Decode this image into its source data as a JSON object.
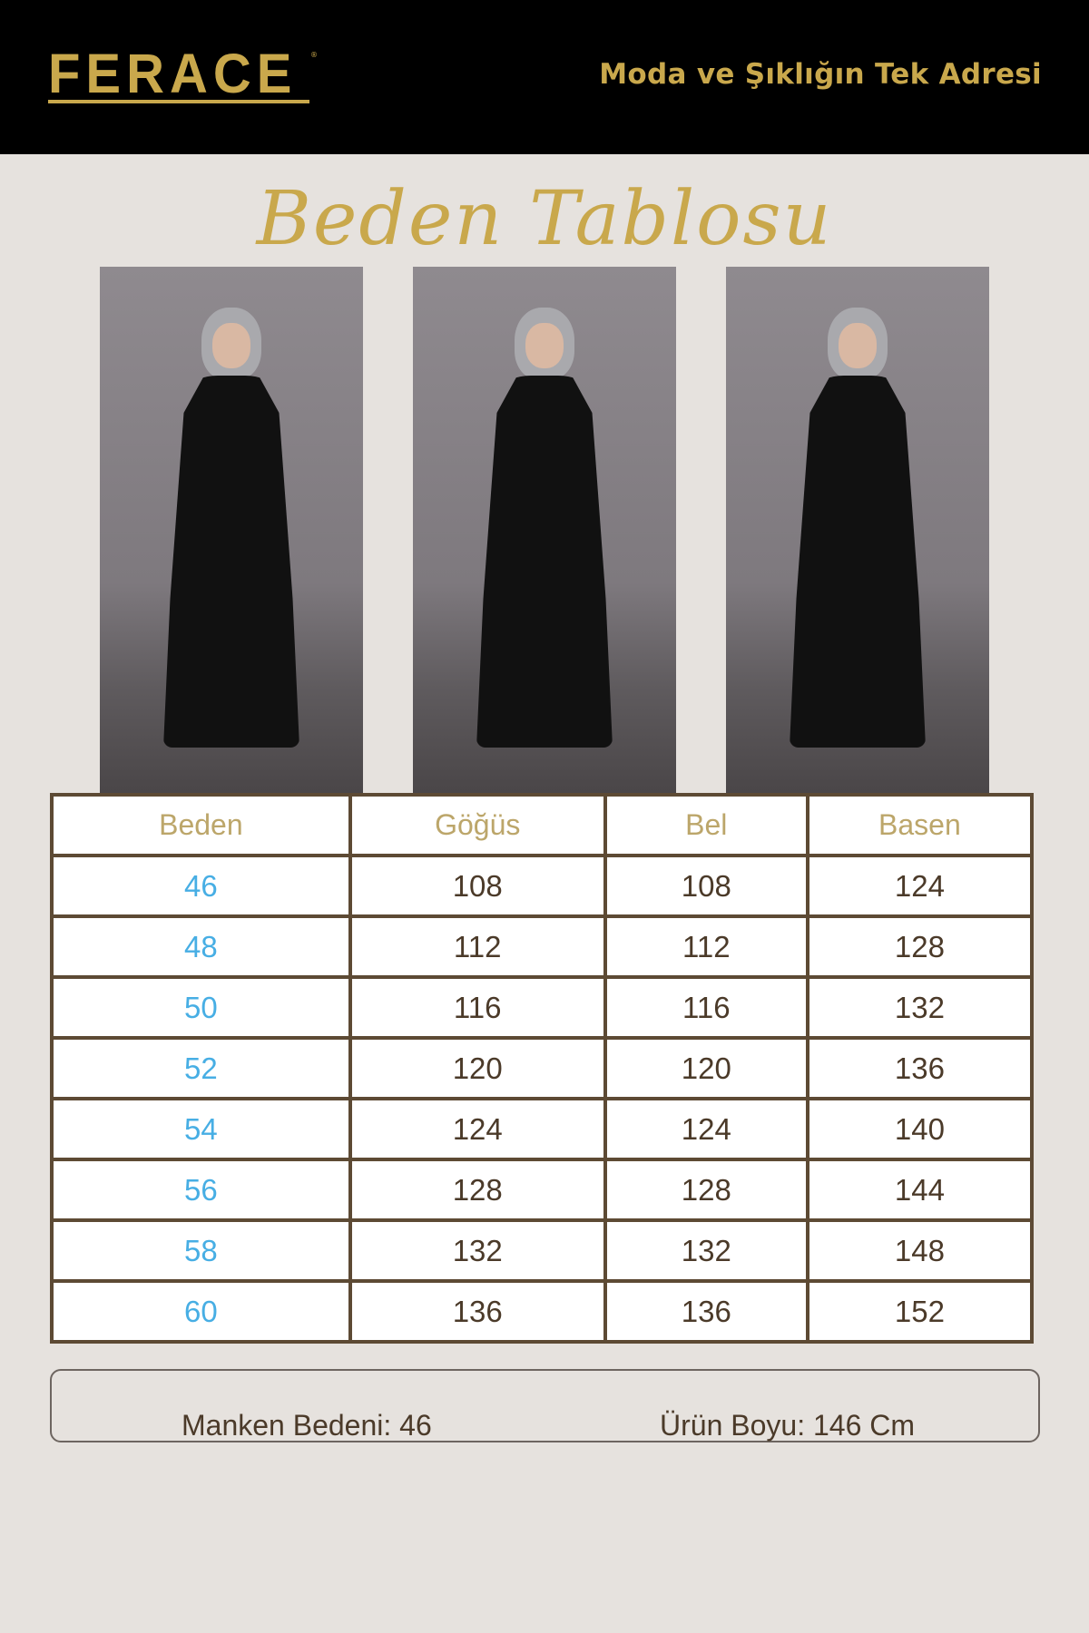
{
  "header": {
    "brand": "FERACE",
    "tagline": "Moda ve Şıklığın Tek Adresi"
  },
  "title": "Beden Tablosu",
  "photos": [
    "front-view",
    "front-view-hand-in-pocket",
    "side-view"
  ],
  "table": {
    "headers": [
      "Beden",
      "Göğüs",
      "Bel",
      "Basen"
    ],
    "rows": [
      [
        "46",
        "108",
        "108",
        "124"
      ],
      [
        "48",
        "112",
        "112",
        "128"
      ],
      [
        "50",
        "116",
        "116",
        "132"
      ],
      [
        "52",
        "120",
        "120",
        "136"
      ],
      [
        "54",
        "124",
        "124",
        "140"
      ],
      [
        "56",
        "128",
        "128",
        "144"
      ],
      [
        "58",
        "132",
        "132",
        "148"
      ],
      [
        "60",
        "136",
        "136",
        "152"
      ]
    ]
  },
  "info": {
    "model_size": "Manken Bedeni: 46",
    "length": "Ürün Boyu: 146 Cm"
  },
  "colors": {
    "gold": "#c9a84c",
    "brown": "#5d4a34",
    "blue": "#47aee4",
    "background": "#e6e2de"
  }
}
